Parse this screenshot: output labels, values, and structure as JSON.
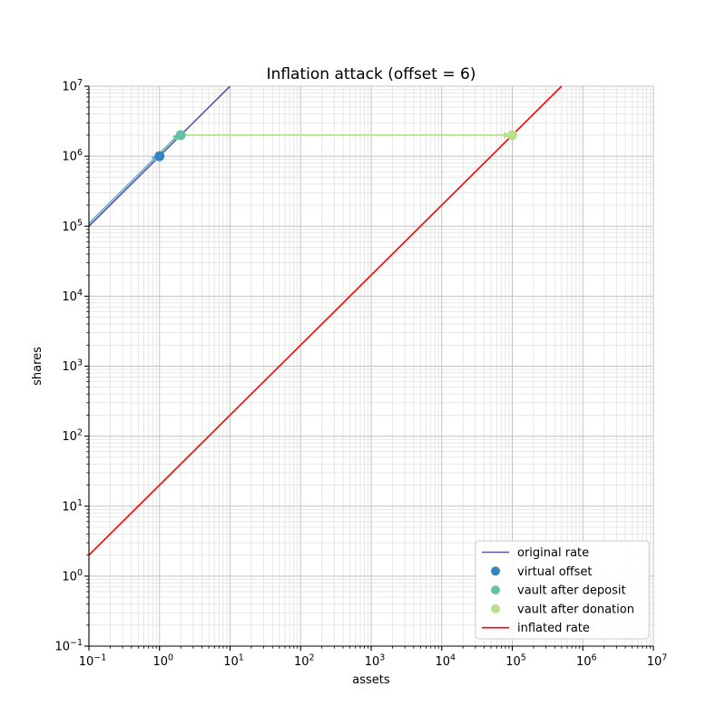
{
  "title": "Inflation attack (offset = 6)",
  "axes": {
    "x": {
      "label": "assets",
      "scale": "log",
      "tick_exponents": [
        -1,
        0,
        1,
        2,
        3,
        4,
        5,
        6,
        7
      ]
    },
    "y": {
      "label": "shares",
      "scale": "log",
      "tick_exponents": [
        -1,
        0,
        1,
        2,
        3,
        4,
        5,
        6,
        7
      ]
    }
  },
  "legend": {
    "position": "lower right",
    "items": [
      {
        "label": "original rate",
        "marker": "line",
        "color": "#5b57a5"
      },
      {
        "label": "virtual offset",
        "marker": "dot",
        "color": "#3385bd"
      },
      {
        "label": "vault after deposit",
        "marker": "dot",
        "color": "#66c2a5"
      },
      {
        "label": "vault after donation",
        "marker": "dot",
        "color": "#b6e08c"
      },
      {
        "label": "inflated rate",
        "marker": "line",
        "color": "#ff0000"
      }
    ]
  },
  "chart_data": {
    "type": "line",
    "title": "Inflation attack (offset = 6)",
    "xlabel": "assets",
    "ylabel": "shares",
    "xscale": "log",
    "yscale": "log",
    "xlim": [
      0.1,
      10000000
    ],
    "ylim": [
      0.1,
      10000000
    ],
    "grid": true,
    "legend_position": "lower right",
    "series": [
      {
        "name": "original rate",
        "type": "line",
        "color": "#5b57a5",
        "relation": "shares = 1000000 * assets",
        "points": [
          [
            0.1,
            100000
          ],
          [
            10,
            10000000
          ]
        ]
      },
      {
        "name": "inflated rate",
        "type": "line",
        "color": "#ff0000",
        "relation": "shares = 20 * assets",
        "points": [
          [
            0.1,
            2
          ],
          [
            500000,
            10000000
          ]
        ]
      },
      {
        "name": "virtual offset",
        "type": "scatter",
        "color": "#3385bd",
        "points": [
          [
            1,
            1000000
          ]
        ]
      },
      {
        "name": "vault after deposit",
        "type": "scatter",
        "color": "#66c2a5",
        "points": [
          [
            2,
            2000000
          ]
        ]
      },
      {
        "name": "vault after donation",
        "type": "scatter",
        "color": "#b6e08c",
        "points": [
          [
            100000,
            2000000
          ]
        ]
      }
    ],
    "arrows": [
      {
        "from": [
          0.1,
          100000
        ],
        "to": [
          1,
          1000000
        ],
        "color": "#6fb1d8"
      },
      {
        "from": [
          1,
          1000000
        ],
        "to": [
          2,
          2000000
        ],
        "color": "#66c2a5"
      },
      {
        "from": [
          2,
          2000000
        ],
        "to": [
          100000,
          2000000
        ],
        "color": "#b6e08c"
      }
    ]
  },
  "colors": {
    "background": "#ffffff",
    "spine": "#000000",
    "grid_major": "#c3c3c3",
    "grid_minor": "#e4e4e4",
    "text": "#000000",
    "legend_border": "#cccccc"
  }
}
